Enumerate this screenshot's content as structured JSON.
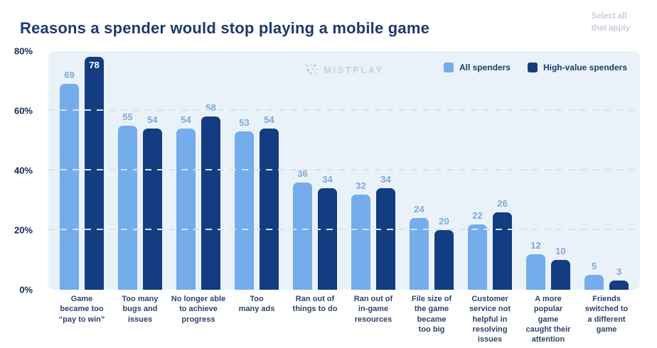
{
  "header": {
    "title": "Reasons a spender would stop playing a mobile game",
    "note": "Select all\nthat apply"
  },
  "watermark": {
    "label": "MISTPLAY",
    "icon": "dots-constellation-icon",
    "color": "#c3d1e1"
  },
  "colors": {
    "all_spenders": "#74ACEC",
    "high_value_spenders": "#133D80",
    "plot_background": "#EAF2F9",
    "gridline": "#D6E2EE",
    "value_label": "#7FA8DA",
    "value_label_inside": "#FFFFFF",
    "axis_tick_label": "#16294E",
    "category_label": "#2F436D",
    "title": "#1D3A6D",
    "note": "#C6CEDB"
  },
  "chart_data": {
    "type": "bar",
    "title": "Reasons a spender would stop playing a mobile game",
    "categories": [
      "Game\nbecame too\n“pay to win”",
      "Too many\nbugs and\nissues",
      "No longer able\nto achieve\nprogress",
      "Too\nmany ads",
      "Ran out of\nthings to do",
      "Ran out of\nin-game\nresources",
      "File size of\nthe game\nbecame\ntoo big",
      "Customer\nservice not\nhelpful in\nresolving\nissues",
      "A more\npopular\ngame\ncaught their\nattention",
      "Friends\nswitched to\na different\ngame"
    ],
    "series": [
      {
        "name": "All spenders",
        "color": "#74ACEC",
        "values": [
          69,
          55,
          54,
          53,
          36,
          32,
          24,
          22,
          12,
          5
        ]
      },
      {
        "name": "High-value spenders",
        "color": "#133D80",
        "values": [
          78,
          54,
          58,
          54,
          34,
          34,
          20,
          26,
          10,
          3
        ]
      }
    ],
    "xlabel": "",
    "ylabel": "",
    "ylim": [
      0,
      80
    ],
    "y_ticks": [
      {
        "label": "0%",
        "value": 0
      },
      {
        "label": "20%",
        "value": 20
      },
      {
        "label": "40%",
        "value": 40
      },
      {
        "label": "60%",
        "value": 60
      },
      {
        "label": "80%",
        "value": 80
      }
    ],
    "gridlines": [
      20,
      40,
      60
    ],
    "grid_style": "dashed",
    "legend_position": "top-right",
    "value_labels": true
  }
}
